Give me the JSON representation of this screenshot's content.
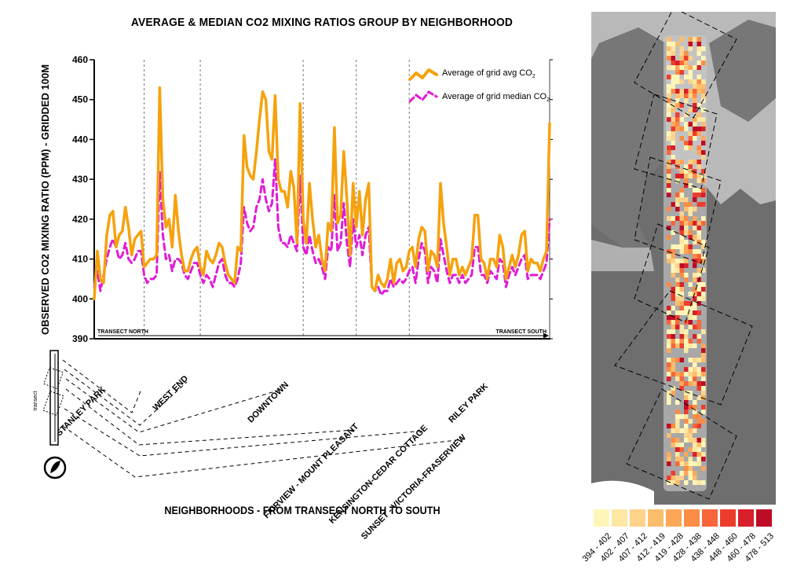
{
  "page": {
    "title": "AVERAGE & MEDIAN CO2 MIXING RATIOS GROUP BY NEIGHBORHOOD",
    "bottom_label": "NEIGHBORHOODS - FROM TRANSECT NORTH TO SOUTH",
    "inset_label": "transect"
  },
  "chart_data": {
    "type": "line",
    "ylabel": "OBSERVED CO2 MIXING RATIO (PPM) - GRIDDED 100M",
    "ylim": [
      390,
      460
    ],
    "yticks": [
      "390",
      "400",
      "410",
      "420",
      "430",
      "440",
      "450",
      "460"
    ],
    "transect_north": "TRANSECT NORTH",
    "transect_south": "TRANSECT SOUTH",
    "legend": {
      "avg": {
        "main": "Average of grid avg CO",
        "sub": "2"
      },
      "median": {
        "main": "Average of grid median CO",
        "sub": "2"
      }
    },
    "neighborhood_dividers": [
      16,
      34,
      67,
      84,
      101
    ],
    "neighborhoods": [
      "STANLEY PARK",
      "WEST END",
      "DOWNTOWN",
      "FAIRVIEW - MOUNT PLEASANT",
      "KENSINGTON-CEDAR COTTAGE",
      "RILEY PARK",
      "SUNSET - VICTORIA-FRASERVIEW"
    ],
    "series": [
      {
        "key": "avg",
        "color": "#f5a20d",
        "values": [
          400,
          412,
          405,
          404,
          416,
          421,
          422,
          413,
          416,
          417,
          423,
          418,
          411,
          415,
          416,
          417,
          408,
          409,
          410,
          410,
          411,
          453,
          425,
          418,
          420,
          413,
          426,
          417,
          411,
          407,
          407,
          410,
          412,
          413,
          408,
          406,
          412,
          410,
          409,
          411,
          414,
          413,
          409,
          406,
          405,
          404,
          413,
          412,
          441,
          433,
          431,
          430,
          437,
          445,
          452,
          450,
          437,
          435,
          451,
          430,
          427,
          427,
          423,
          432,
          428,
          414,
          449,
          420,
          414,
          429,
          420,
          413,
          416,
          410,
          407,
          419,
          417,
          443,
          419,
          421,
          437,
          425,
          411,
          429,
          418,
          427,
          416,
          425,
          429,
          403,
          402,
          406,
          404,
          403,
          405,
          410,
          404,
          409,
          410,
          407,
          408,
          412,
          413,
          408,
          415,
          418,
          417,
          407,
          412,
          411,
          408,
          429,
          419,
          413,
          406,
          410,
          410,
          406,
          408,
          406,
          408,
          410,
          421,
          421,
          410,
          409,
          405,
          410,
          410,
          408,
          416,
          413,
          405,
          408,
          411,
          408,
          411,
          416,
          417,
          407,
          410,
          409,
          409,
          407,
          410,
          412,
          444
        ]
      },
      {
        "key": "median",
        "color": "#e01bd6",
        "values": [
          403,
          407,
          402,
          406,
          410,
          413,
          415,
          413,
          410,
          411,
          414,
          410,
          409,
          410,
          412,
          412,
          406,
          404,
          405,
          405,
          406,
          432,
          416,
          410,
          411,
          407,
          410,
          410,
          409,
          406,
          405,
          407,
          409,
          409,
          406,
          404,
          406,
          405,
          403,
          406,
          409,
          410,
          406,
          404,
          404,
          403,
          405,
          409,
          423,
          419,
          417,
          418,
          423,
          425,
          430,
          425,
          422,
          424,
          435,
          418,
          414,
          414,
          413,
          416,
          414,
          412,
          431,
          413,
          411,
          416,
          412,
          409,
          410,
          408,
          405,
          413,
          412,
          426,
          412,
          414,
          424,
          414,
          408,
          420,
          413,
          416,
          411,
          416,
          418,
          403,
          402,
          403,
          401,
          402,
          402,
          405,
          403,
          404,
          405,
          404,
          405,
          407,
          408,
          404,
          410,
          414,
          412,
          404,
          408,
          407,
          404,
          415,
          411,
          407,
          404,
          406,
          406,
          404,
          406,
          404,
          405,
          406,
          413,
          413,
          406,
          406,
          404,
          407,
          406,
          405,
          410,
          409,
          403,
          406,
          408,
          406,
          408,
          410,
          411,
          405,
          406,
          406,
          406,
          405,
          407,
          409,
          420
        ]
      }
    ]
  },
  "map": {
    "legend_colors": [
      "#fef6b8",
      "#fde7a3",
      "#fdd28a",
      "#fcbd6d",
      "#fca758",
      "#fb8c46",
      "#f7663a",
      "#ec3d2c",
      "#d7202b",
      "#be0c27"
    ],
    "legend_labels": [
      "394 - 402",
      "402 - 407",
      "407 - 412",
      "412 - 419",
      "419 - 428",
      "428 - 438",
      "438 - 448",
      "448 - 460",
      "460 - 478",
      "478 - 513"
    ]
  }
}
